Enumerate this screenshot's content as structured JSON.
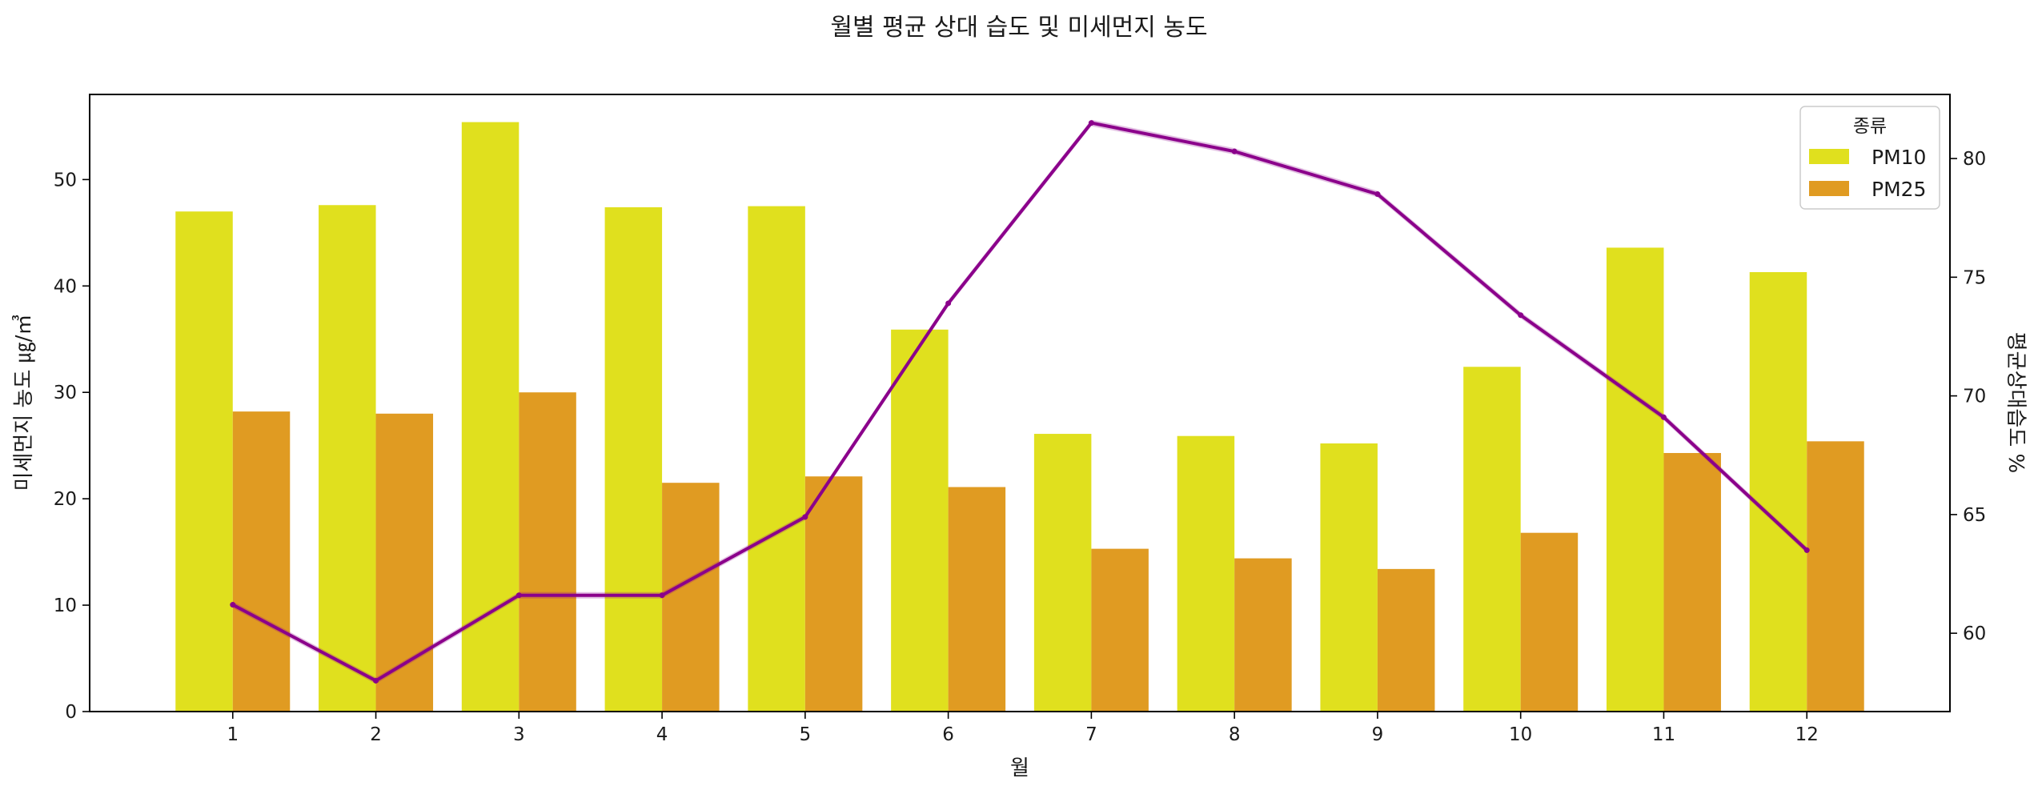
{
  "chart_data": {
    "type": "bar+line",
    "title": "월별 평균 상대 습도 및 미세먼지 농도",
    "xlabel": "월",
    "ylabel": "미세먼지 농도 ㎍/㎥",
    "y2label": "평균상대습도 %",
    "categories": [
      "1",
      "2",
      "3",
      "4",
      "5",
      "6",
      "7",
      "8",
      "9",
      "10",
      "11",
      "12"
    ],
    "ylim": [
      0,
      58
    ],
    "yticks": [
      0,
      10,
      20,
      30,
      40,
      50
    ],
    "y2lim": [
      56.7,
      82.7
    ],
    "y2ticks": [
      60,
      65,
      70,
      75,
      80
    ],
    "grid": false,
    "legend": {
      "title": "종류",
      "placement": "top-right"
    },
    "bar_series": [
      {
        "name": "PM10",
        "color": "#e0e01e",
        "values": [
          47.0,
          47.6,
          55.4,
          47.4,
          47.5,
          35.9,
          26.1,
          25.9,
          25.2,
          32.4,
          43.6,
          41.3
        ]
      },
      {
        "name": "PM25",
        "color": "#e09b22",
        "values": [
          28.2,
          28.0,
          30.0,
          21.5,
          22.1,
          21.1,
          15.3,
          14.4,
          13.4,
          16.8,
          24.3,
          25.4
        ]
      }
    ],
    "line_series": {
      "axis": "right",
      "color": "#8b008b",
      "values": [
        61.2,
        58.0,
        61.6,
        61.6,
        64.9,
        73.9,
        81.5,
        80.3,
        78.5,
        73.4,
        69.1,
        63.5
      ]
    }
  }
}
